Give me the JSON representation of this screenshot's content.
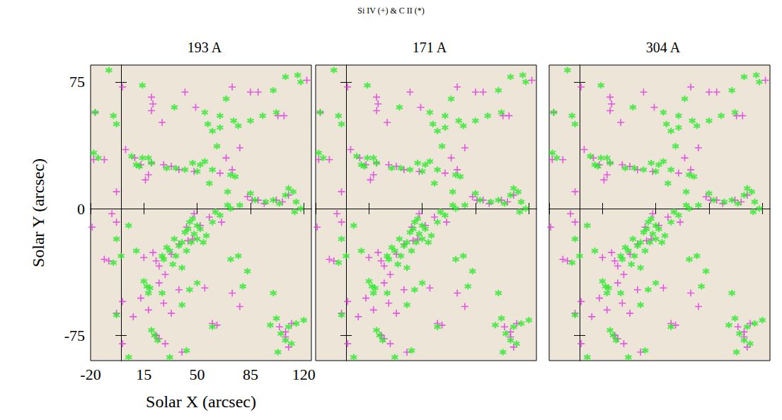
{
  "chart_data": {
    "type": "scatter",
    "title": "Si IV (+) & C II (*)",
    "panels": [
      "193 A",
      "171 A",
      "304 A"
    ],
    "xlabel": "Solar X (arcsec)",
    "ylabel": "Solar Y (arcsec)",
    "xlim": [
      -20,
      125
    ],
    "ylim": [
      -90,
      85
    ],
    "xticks": [
      -20,
      15,
      50,
      85,
      120
    ],
    "yticks": [
      -75,
      0,
      75
    ],
    "grid": false,
    "series": [
      {
        "name": "Si IV",
        "marker": "plus",
        "color": "#e033e0",
        "x": [
          1,
          20,
          21,
          20,
          27,
          42,
          49,
          73,
          85,
          90,
          103,
          107,
          122,
          -17,
          -18,
          -11,
          3,
          9,
          13,
          18,
          16,
          20,
          28,
          33,
          38,
          48,
          69,
          78,
          73,
          65,
          83,
          86,
          90,
          94,
          102,
          106,
          -19,
          -6,
          -3,
          -8,
          -11,
          15,
          21,
          23,
          25,
          29,
          25,
          33,
          38,
          44,
          47,
          52,
          1,
          -3,
          8,
          13,
          18,
          28,
          38,
          55,
          73,
          60,
          63,
          78,
          104,
          108,
          23,
          29,
          1,
          40,
          108,
          110,
          112,
          43,
          58,
          66,
          -3,
          25,
          33,
          48,
          110
        ],
        "y": [
          72,
          66,
          62,
          58,
          51,
          69,
          60,
          72,
          69,
          69,
          55,
          55,
          76,
          57,
          29,
          29,
          35,
          30,
          26,
          20,
          17,
          27,
          26,
          25,
          23,
          22,
          30,
          36,
          23,
          21,
          7,
          5,
          5,
          3,
          5,
          4,
          -11,
          -3,
          -8,
          -31,
          -30,
          -29,
          -26,
          -31,
          -34,
          -39,
          -44,
          -27,
          -21,
          -19,
          -18,
          -10,
          -55,
          -62,
          -64,
          -53,
          -60,
          -56,
          -48,
          -47,
          -50,
          -68,
          -69,
          -58,
          -70,
          -73,
          -75,
          -80,
          -80,
          -85,
          -76,
          -82,
          -68,
          -11,
          -5,
          -8,
          10,
          -77,
          -62,
          -3,
          8
        ]
      },
      {
        "name": "C II",
        "marker": "asterisk",
        "color": "#2bea2b",
        "x": [
          -8,
          -17,
          -5,
          -3,
          14,
          35,
          55,
          57,
          60,
          65,
          65,
          69,
          74,
          77,
          85,
          93,
          100,
          108,
          118,
          116,
          102,
          63,
          -18,
          -15,
          7,
          10,
          14,
          12,
          18,
          20,
          30,
          36,
          42,
          50,
          47,
          55,
          60,
          52,
          58,
          72,
          75,
          70,
          70,
          72,
          78,
          85,
          88,
          95,
          100,
          104,
          110,
          113,
          115,
          114,
          118,
          108,
          -3,
          5,
          60,
          62,
          65,
          30,
          27,
          28,
          32,
          34,
          36,
          38,
          40,
          42,
          44,
          45,
          47,
          48,
          50,
          52,
          50,
          54,
          43,
          46,
          56,
          40,
          35,
          -5,
          0,
          10,
          -3,
          15,
          17,
          19,
          18,
          27,
          40,
          45,
          50,
          72,
          77,
          80,
          83,
          100,
          22,
          24,
          20,
          60,
          98,
          102,
          105,
          108,
          110,
          115,
          120,
          103,
          112,
          32,
          43,
          5
        ],
        "y": [
          82,
          57,
          55,
          50,
          73,
          60,
          57,
          50,
          46,
          48,
          55,
          65,
          52,
          49,
          52,
          55,
          70,
          78,
          75,
          79,
          57,
          37,
          33,
          30,
          31,
          26,
          30,
          25,
          30,
          27,
          24,
          24,
          23,
          22,
          27,
          28,
          23,
          26,
          15,
          20,
          19,
          10,
          2,
          0,
          2,
          9,
          5,
          4,
          5,
          3,
          12,
          10,
          4,
          -2,
          0,
          8,
          -18,
          -10,
          -8,
          -2,
          -4,
          -23,
          -28,
          -30,
          -25,
          -33,
          -28,
          -22,
          -20,
          -14,
          -12,
          -8,
          -6,
          -15,
          -10,
          -12,
          -18,
          -20,
          -25,
          -20,
          -16,
          -35,
          -18,
          -32,
          -28,
          -25,
          -63,
          -43,
          -46,
          -47,
          -50,
          -50,
          -57,
          -48,
          -44,
          -30,
          -28,
          -46,
          -37,
          -50,
          -75,
          -78,
          -72,
          -70,
          -69,
          -65,
          -74,
          -78,
          -70,
          -68,
          -66,
          -85,
          -80,
          -88,
          -84,
          -88
        ]
      }
    ]
  }
}
